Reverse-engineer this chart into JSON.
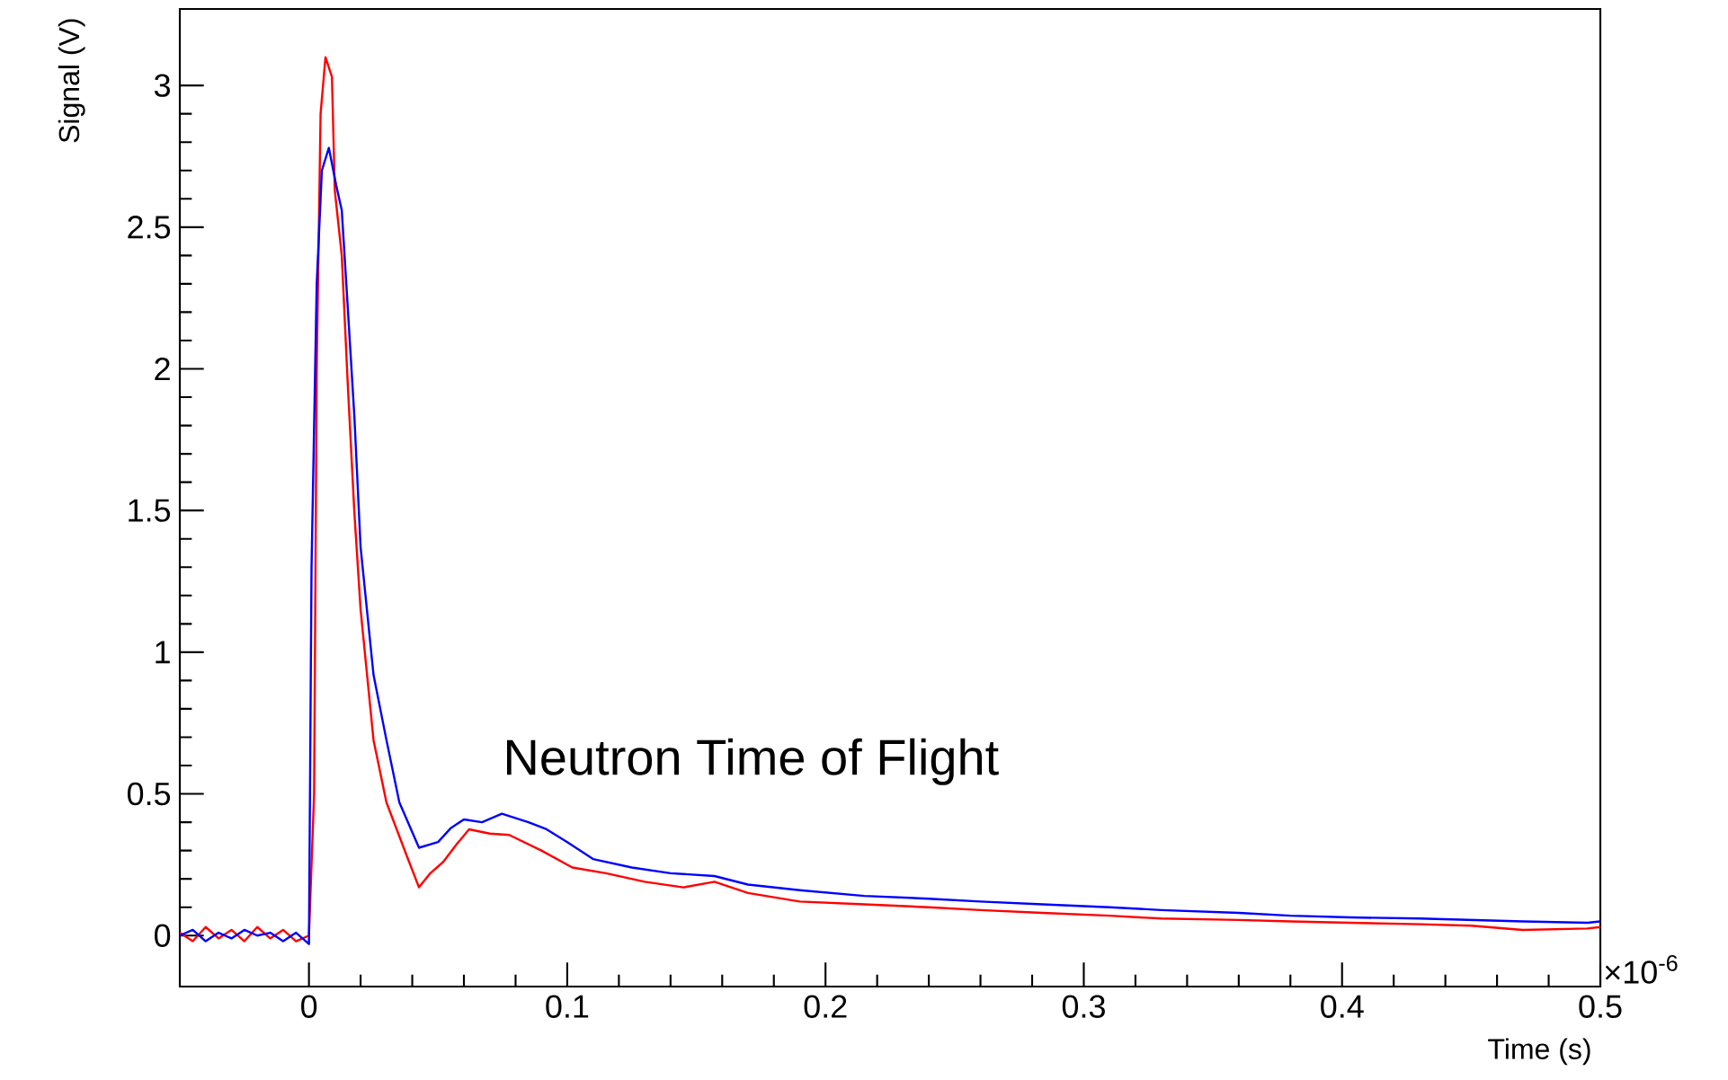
{
  "chart_data": {
    "type": "line",
    "xlabel": "Time (s)",
    "ylabel": "Signal (V)",
    "annotations": [
      "Neutron Time of Flight",
      "×10$^{-6}$"
    ],
    "xlim": [
      -0.05,
      0.5
    ],
    "ylim": [
      -0.18,
      3.27
    ],
    "xticks": [
      0,
      0.1,
      0.2,
      0.3,
      0.4,
      0.5
    ],
    "yticks": [
      0,
      0.5,
      1,
      1.5,
      2,
      2.5,
      3
    ],
    "grid": false,
    "series": [
      {
        "color": "#ff0000",
        "x": [
          -0.05,
          -0.045,
          -0.04,
          -0.035,
          -0.03,
          -0.025,
          -0.02,
          -0.015,
          -0.01,
          -0.005,
          0.0,
          0.002,
          0.003,
          0.0045,
          0.0064,
          0.0089,
          0.01,
          0.0127,
          0.015,
          0.0176,
          0.02,
          0.025,
          0.03,
          0.0375,
          0.0426,
          0.047,
          0.052,
          0.057,
          0.062,
          0.07,
          0.0775,
          0.09,
          0.102,
          0.115,
          0.13,
          0.145,
          0.157,
          0.17,
          0.19,
          0.215,
          0.24,
          0.26,
          0.284,
          0.31,
          0.33,
          0.36,
          0.38,
          0.403,
          0.43,
          0.45,
          0.47,
          0.495,
          0.5
        ],
        "values": [
          0.01,
          -0.02,
          0.03,
          -0.01,
          0.02,
          -0.02,
          0.03,
          -0.01,
          0.02,
          -0.02,
          0.0,
          0.5,
          2.0,
          2.9,
          3.1,
          3.03,
          2.63,
          2.4,
          1.95,
          1.49,
          1.15,
          0.69,
          0.47,
          0.29,
          0.17,
          0.22,
          0.26,
          0.32,
          0.375,
          0.36,
          0.355,
          0.3,
          0.24,
          0.22,
          0.19,
          0.17,
          0.19,
          0.15,
          0.12,
          0.11,
          0.1,
          0.09,
          0.08,
          0.07,
          0.06,
          0.055,
          0.05,
          0.045,
          0.04,
          0.035,
          0.02,
          0.025,
          0.03
        ]
      },
      {
        "color": "#0000ff",
        "x": [
          -0.05,
          -0.045,
          -0.04,
          -0.035,
          -0.03,
          -0.025,
          -0.02,
          -0.015,
          -0.01,
          -0.005,
          0.0,
          0.001,
          0.003,
          0.005,
          0.0077,
          0.0105,
          0.0127,
          0.015,
          0.0176,
          0.02,
          0.025,
          0.03,
          0.035,
          0.0426,
          0.05,
          0.055,
          0.06,
          0.067,
          0.0747,
          0.085,
          0.092,
          0.1,
          0.11,
          0.125,
          0.14,
          0.157,
          0.17,
          0.19,
          0.215,
          0.24,
          0.26,
          0.284,
          0.31,
          0.33,
          0.36,
          0.38,
          0.403,
          0.43,
          0.45,
          0.47,
          0.495,
          0.5
        ],
        "values": [
          0.0,
          0.02,
          -0.02,
          0.01,
          -0.01,
          0.02,
          0.0,
          0.01,
          -0.02,
          0.01,
          -0.03,
          1.3,
          2.3,
          2.7,
          2.78,
          2.65,
          2.56,
          2.22,
          1.83,
          1.37,
          0.92,
          0.69,
          0.47,
          0.31,
          0.33,
          0.38,
          0.41,
          0.4,
          0.43,
          0.4,
          0.375,
          0.33,
          0.27,
          0.24,
          0.22,
          0.21,
          0.18,
          0.16,
          0.14,
          0.13,
          0.12,
          0.11,
          0.1,
          0.09,
          0.08,
          0.07,
          0.064,
          0.06,
          0.055,
          0.05,
          0.045,
          0.05
        ]
      }
    ]
  }
}
